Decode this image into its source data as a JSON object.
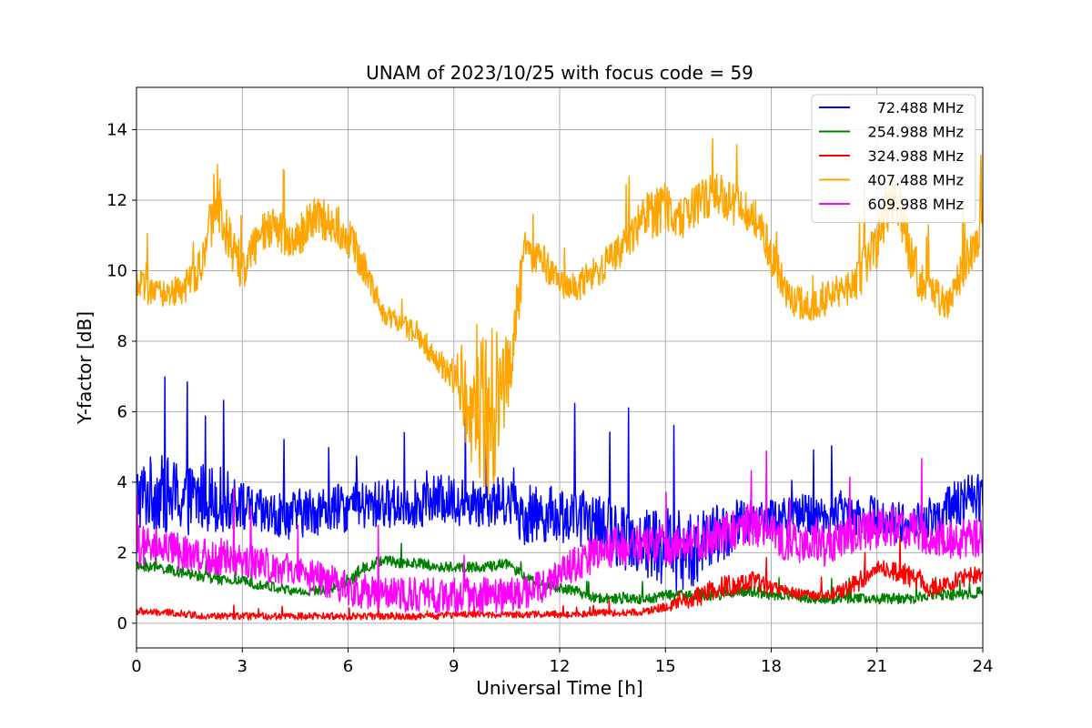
{
  "chart_data": {
    "type": "line",
    "title": "UNAM of 2023/10/25 with focus code = 59",
    "xlabel": "Universal Time [h]",
    "ylabel": "Y-factor [dB]",
    "xlim": [
      0,
      24
    ],
    "ylim": [
      -0.7,
      15.2
    ],
    "xticks": [
      0,
      3,
      6,
      9,
      12,
      15,
      18,
      21,
      24
    ],
    "yticks": [
      0,
      2,
      4,
      6,
      8,
      10,
      12,
      14
    ],
    "grid": true,
    "legend_position": "top-right",
    "series": [
      {
        "name": "72.488 MHz",
        "color": "#0000ff",
        "x": [
          0,
          0.5,
          1,
          1.5,
          2,
          2.5,
          3,
          3.5,
          4,
          4.5,
          5,
          5.5,
          6,
          6.5,
          7,
          7.5,
          8,
          8.5,
          9,
          9.5,
          10,
          10.5,
          11,
          11.5,
          12,
          12.5,
          13,
          13.5,
          14,
          14.5,
          15,
          15.5,
          16,
          16.5,
          17,
          17.5,
          18,
          18.5,
          19,
          19.5,
          20,
          20.5,
          21,
          21.5,
          22,
          22.5,
          23,
          23.5,
          24
        ],
        "y": [
          3.6,
          3.7,
          3.6,
          3.5,
          3.6,
          3.5,
          3.3,
          3.1,
          3.0,
          3.1,
          3.2,
          3.2,
          3.3,
          3.3,
          3.4,
          3.4,
          3.4,
          3.5,
          3.5,
          3.4,
          3.4,
          3.5,
          3.0,
          3.1,
          3.1,
          3.0,
          2.9,
          2.6,
          2.4,
          2.3,
          2.2,
          2.0,
          2.2,
          2.5,
          2.7,
          2.9,
          3.0,
          3.0,
          3.1,
          3.0,
          3.2,
          3.1,
          3.0,
          2.9,
          2.8,
          3.0,
          3.2,
          3.5,
          3.6
        ],
        "spread": [
          1.0,
          1.1,
          1.1,
          1.0,
          1.0,
          0.9,
          0.7,
          0.7,
          0.7,
          0.7,
          0.7,
          0.7,
          0.7,
          0.7,
          0.7,
          0.7,
          0.7,
          0.7,
          0.7,
          0.7,
          0.7,
          0.7,
          0.8,
          0.8,
          0.8,
          0.8,
          0.8,
          0.9,
          1.0,
          1.1,
          1.2,
          1.2,
          1.0,
          0.9,
          0.8,
          0.7,
          0.6,
          0.6,
          0.6,
          0.6,
          0.6,
          0.6,
          0.6,
          0.6,
          0.6,
          0.6,
          0.7,
          0.7,
          0.7
        ]
      },
      {
        "name": "254.988 MHz",
        "color": "#008000",
        "x": [
          0,
          0.5,
          1,
          1.5,
          2,
          2.5,
          3,
          3.5,
          4,
          4.5,
          5,
          5.5,
          6,
          6.5,
          7,
          7.5,
          8,
          8.5,
          9,
          9.5,
          10,
          10.5,
          11,
          11.5,
          12,
          12.5,
          13,
          13.5,
          14,
          14.5,
          15,
          15.5,
          16,
          16.5,
          17,
          17.5,
          18,
          18.5,
          19,
          19.5,
          20,
          20.5,
          21,
          21.5,
          22,
          22.5,
          23,
          23.5,
          24
        ],
        "y": [
          1.6,
          1.6,
          1.5,
          1.4,
          1.3,
          1.2,
          1.2,
          1.1,
          1.0,
          0.9,
          0.9,
          1.0,
          1.2,
          1.6,
          1.8,
          1.7,
          1.7,
          1.6,
          1.6,
          1.6,
          1.6,
          1.7,
          1.3,
          1.1,
          1.0,
          0.9,
          0.7,
          0.7,
          0.7,
          0.7,
          0.8,
          0.8,
          0.8,
          0.8,
          0.9,
          0.9,
          0.8,
          0.8,
          0.7,
          0.7,
          0.7,
          0.7,
          0.7,
          0.7,
          0.7,
          0.8,
          0.8,
          0.8,
          0.9
        ],
        "spread": [
          0.15,
          0.15,
          0.15,
          0.15,
          0.15,
          0.15,
          0.15,
          0.15,
          0.15,
          0.15,
          0.15,
          0.15,
          0.2,
          0.2,
          0.15,
          0.15,
          0.15,
          0.15,
          0.15,
          0.15,
          0.15,
          0.15,
          0.15,
          0.15,
          0.15,
          0.15,
          0.15,
          0.15,
          0.15,
          0.15,
          0.15,
          0.15,
          0.15,
          0.15,
          0.15,
          0.15,
          0.15,
          0.15,
          0.15,
          0.15,
          0.15,
          0.15,
          0.15,
          0.15,
          0.15,
          0.15,
          0.15,
          0.15,
          0.15
        ]
      },
      {
        "name": "324.988 MHz",
        "color": "#ff0000",
        "x": [
          0,
          0.5,
          1,
          1.5,
          2,
          2.5,
          3,
          3.5,
          4,
          4.5,
          5,
          5.5,
          6,
          6.5,
          7,
          7.5,
          8,
          8.5,
          9,
          9.5,
          10,
          10.5,
          11,
          11.5,
          12,
          12.5,
          13,
          13.5,
          14,
          14.5,
          15,
          15.5,
          16,
          16.5,
          17,
          17.5,
          18,
          18.5,
          19,
          19.5,
          20,
          20.5,
          21,
          21.5,
          22,
          22.5,
          23,
          23.5,
          24
        ],
        "y": [
          0.35,
          0.3,
          0.3,
          0.25,
          0.2,
          0.2,
          0.2,
          0.2,
          0.2,
          0.2,
          0.2,
          0.2,
          0.2,
          0.2,
          0.2,
          0.2,
          0.2,
          0.2,
          0.25,
          0.25,
          0.25,
          0.25,
          0.25,
          0.25,
          0.25,
          0.25,
          0.3,
          0.3,
          0.3,
          0.35,
          0.45,
          0.6,
          0.8,
          1.0,
          1.1,
          1.2,
          1.0,
          0.9,
          0.8,
          0.8,
          0.9,
          1.2,
          1.6,
          1.5,
          1.3,
          1.0,
          1.1,
          1.3,
          1.4
        ],
        "spread": [
          0.12,
          0.1,
          0.1,
          0.1,
          0.1,
          0.1,
          0.1,
          0.1,
          0.1,
          0.1,
          0.1,
          0.1,
          0.1,
          0.1,
          0.1,
          0.1,
          0.1,
          0.1,
          0.1,
          0.1,
          0.1,
          0.1,
          0.1,
          0.1,
          0.1,
          0.1,
          0.1,
          0.1,
          0.1,
          0.1,
          0.15,
          0.2,
          0.3,
          0.3,
          0.3,
          0.3,
          0.2,
          0.15,
          0.15,
          0.15,
          0.2,
          0.3,
          0.2,
          0.3,
          0.3,
          0.25,
          0.25,
          0.25,
          0.25
        ]
      },
      {
        "name": "407.488 MHz",
        "color": "#ffa500",
        "x": [
          0,
          0.5,
          1,
          1.5,
          2,
          2.25,
          2.5,
          3,
          3.5,
          4,
          4.5,
          5,
          5.5,
          6,
          6.5,
          7,
          7.5,
          8,
          8.5,
          9,
          9.5,
          10,
          10.3,
          10.6,
          11,
          11.5,
          12,
          12.5,
          13,
          13.5,
          14,
          14.5,
          15,
          15.5,
          16,
          16.5,
          17,
          17.5,
          18,
          18.5,
          19,
          19.5,
          20,
          20.5,
          21,
          21.5,
          22,
          22.5,
          23,
          23.5,
          24
        ],
        "y": [
          9.6,
          9.3,
          9.4,
          9.6,
          10.5,
          12.5,
          11.2,
          10.0,
          11.0,
          11.2,
          10.8,
          11.5,
          11.4,
          11.0,
          10.0,
          8.8,
          8.5,
          8.2,
          7.5,
          7.0,
          6.5,
          6.0,
          6.5,
          7.5,
          10.5,
          10.3,
          9.6,
          9.5,
          10.0,
          10.3,
          11.0,
          11.5,
          11.8,
          11.5,
          12.0,
          12.2,
          11.8,
          11.5,
          10.5,
          9.2,
          9.0,
          9.2,
          9.4,
          9.8,
          10.8,
          12.2,
          10.2,
          9.4,
          9.0,
          10.2,
          11.3
        ],
        "spread": [
          0.5,
          0.4,
          0.4,
          0.5,
          0.7,
          1.0,
          0.8,
          0.6,
          0.6,
          0.6,
          0.6,
          0.6,
          0.6,
          0.6,
          0.5,
          0.3,
          0.3,
          0.4,
          0.4,
          0.5,
          2.0,
          2.5,
          2.0,
          1.0,
          0.6,
          0.5,
          0.4,
          0.4,
          0.5,
          0.5,
          0.6,
          0.8,
          0.7,
          0.6,
          0.6,
          0.6,
          0.6,
          0.6,
          0.6,
          0.5,
          0.5,
          0.5,
          0.5,
          0.6,
          0.7,
          1.0,
          0.8,
          0.5,
          0.5,
          0.6,
          0.6
        ]
      },
      {
        "name": "609.988 MHz",
        "color": "#ff00ff",
        "x": [
          0,
          0.5,
          1,
          1.5,
          2,
          2.5,
          3,
          3.5,
          4,
          4.5,
          5,
          5.5,
          6,
          6.5,
          7,
          7.5,
          8,
          8.5,
          9,
          9.5,
          10,
          10.5,
          11,
          11.5,
          12,
          12.5,
          13,
          13.5,
          14,
          14.5,
          15,
          15.5,
          16,
          16.5,
          17,
          17.5,
          18,
          18.5,
          19,
          19.5,
          20,
          20.5,
          21,
          21.5,
          22,
          22.5,
          23,
          23.5,
          24
        ],
        "y": [
          2.2,
          2.1,
          2.0,
          2.0,
          1.9,
          1.9,
          1.8,
          1.7,
          1.6,
          1.4,
          1.3,
          1.2,
          1.0,
          0.9,
          0.8,
          0.8,
          0.8,
          0.8,
          0.8,
          0.8,
          0.8,
          0.8,
          0.9,
          1.0,
          1.4,
          1.7,
          2.0,
          2.2,
          2.2,
          2.3,
          2.2,
          2.3,
          2.4,
          2.5,
          2.7,
          2.8,
          2.6,
          2.3,
          2.2,
          2.2,
          2.4,
          2.6,
          2.7,
          2.8,
          2.6,
          2.5,
          2.4,
          2.4,
          2.4
        ],
        "spread": [
          0.6,
          0.6,
          0.6,
          0.5,
          0.5,
          0.6,
          0.5,
          0.5,
          0.5,
          0.5,
          0.5,
          0.5,
          0.5,
          0.5,
          0.5,
          0.5,
          0.5,
          0.5,
          0.5,
          0.5,
          0.5,
          0.5,
          0.5,
          0.5,
          0.5,
          0.5,
          0.6,
          0.6,
          0.6,
          0.6,
          0.6,
          0.6,
          0.6,
          0.6,
          0.6,
          0.6,
          0.6,
          0.6,
          0.6,
          0.6,
          0.6,
          0.6,
          0.6,
          0.6,
          0.6,
          0.6,
          0.6,
          0.6,
          0.6
        ]
      }
    ]
  }
}
